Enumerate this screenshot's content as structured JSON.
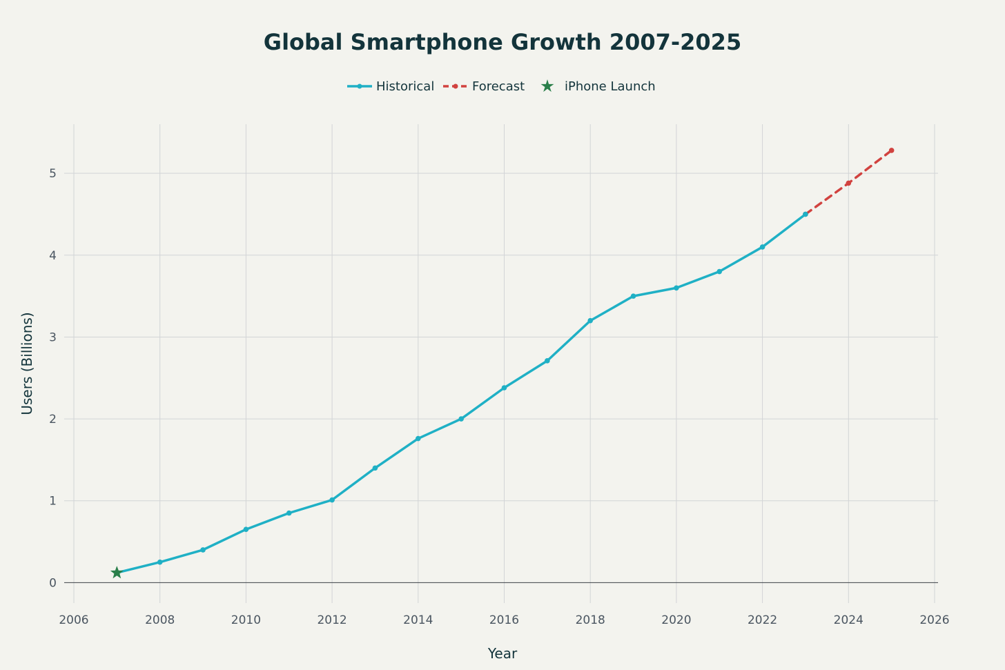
{
  "chart_data": {
    "type": "line",
    "title": "Global Smartphone Growth 2007-2025",
    "xlabel": "Year",
    "ylabel": "Users (Billions)",
    "xlim": [
      2006,
      2026
    ],
    "ylim": [
      -0.25,
      5.6
    ],
    "x_ticks": [
      2006,
      2008,
      2010,
      2012,
      2014,
      2016,
      2018,
      2020,
      2022,
      2024,
      2026
    ],
    "y_ticks": [
      0,
      1,
      2,
      3,
      4,
      5
    ],
    "grid": true,
    "legend_position": "top-center",
    "series": [
      {
        "name": "Historical",
        "style": "solid",
        "color": "#1fb0c5",
        "x": [
          2007,
          2008,
          2009,
          2010,
          2011,
          2012,
          2013,
          2014,
          2015,
          2016,
          2017,
          2018,
          2019,
          2020,
          2021,
          2022,
          2023
        ],
        "y": [
          0.12,
          0.25,
          0.4,
          0.65,
          0.85,
          1.01,
          1.4,
          1.76,
          2.0,
          2.38,
          2.71,
          3.2,
          3.5,
          3.6,
          3.8,
          4.1,
          4.5
        ]
      },
      {
        "name": "Forecast",
        "style": "dashed",
        "color": "#d1423f",
        "x": [
          2023,
          2024,
          2025
        ],
        "y": [
          4.5,
          4.88,
          5.28
        ]
      },
      {
        "name": "iPhone Launch",
        "style": "marker-star",
        "color": "#2a7f4a",
        "x": [
          2007
        ],
        "y": [
          0.12
        ]
      }
    ]
  }
}
